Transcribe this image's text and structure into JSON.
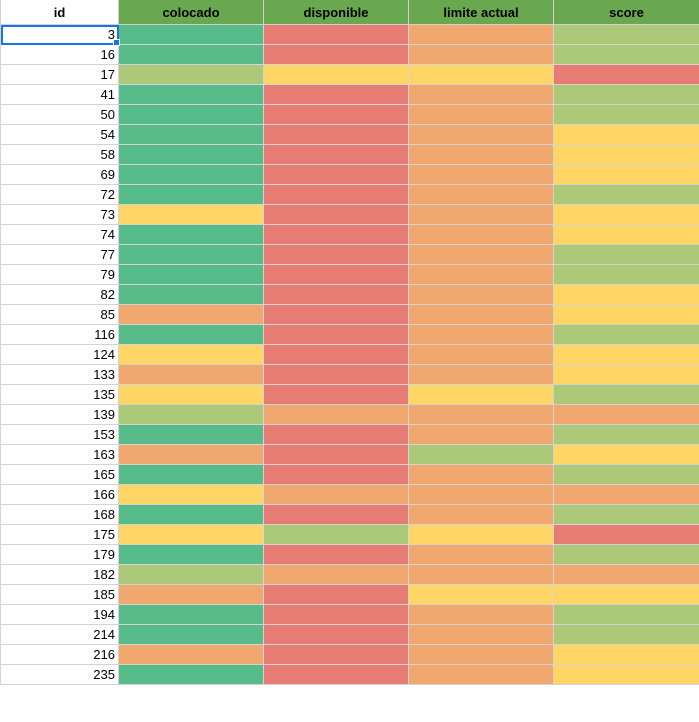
{
  "palette": {
    "green": "#57bb8a",
    "light_green": "#abc978",
    "yellow": "#ffd666",
    "orange": "#f0a86e",
    "red": "#e67c73",
    "header_green": "#6aa84f"
  },
  "headers": {
    "id": "id",
    "colocado": "colocado",
    "disponible": "disponible",
    "limite_actual": "limite actual",
    "score": "score"
  },
  "rows": [
    {
      "id": "3",
      "colors": [
        "green",
        "red",
        "orange",
        "light_green"
      ]
    },
    {
      "id": "16",
      "colors": [
        "green",
        "red",
        "orange",
        "light_green"
      ]
    },
    {
      "id": "17",
      "colors": [
        "light_green",
        "yellow",
        "yellow",
        "red"
      ]
    },
    {
      "id": "41",
      "colors": [
        "green",
        "red",
        "orange",
        "light_green"
      ]
    },
    {
      "id": "50",
      "colors": [
        "green",
        "red",
        "orange",
        "light_green"
      ]
    },
    {
      "id": "54",
      "colors": [
        "green",
        "red",
        "orange",
        "yellow"
      ]
    },
    {
      "id": "58",
      "colors": [
        "green",
        "red",
        "orange",
        "yellow"
      ]
    },
    {
      "id": "69",
      "colors": [
        "green",
        "red",
        "orange",
        "yellow"
      ]
    },
    {
      "id": "72",
      "colors": [
        "green",
        "red",
        "orange",
        "light_green"
      ]
    },
    {
      "id": "73",
      "colors": [
        "yellow",
        "red",
        "orange",
        "yellow"
      ]
    },
    {
      "id": "74",
      "colors": [
        "green",
        "red",
        "orange",
        "yellow"
      ]
    },
    {
      "id": "77",
      "colors": [
        "green",
        "red",
        "orange",
        "light_green"
      ]
    },
    {
      "id": "79",
      "colors": [
        "green",
        "red",
        "orange",
        "light_green"
      ]
    },
    {
      "id": "82",
      "colors": [
        "green",
        "red",
        "orange",
        "yellow"
      ]
    },
    {
      "id": "85",
      "colors": [
        "orange",
        "red",
        "orange",
        "yellow"
      ]
    },
    {
      "id": "116",
      "colors": [
        "green",
        "red",
        "orange",
        "light_green"
      ]
    },
    {
      "id": "124",
      "colors": [
        "yellow",
        "red",
        "orange",
        "yellow"
      ]
    },
    {
      "id": "133",
      "colors": [
        "orange",
        "red",
        "orange",
        "yellow"
      ]
    },
    {
      "id": "135",
      "colors": [
        "yellow",
        "red",
        "yellow",
        "light_green"
      ]
    },
    {
      "id": "139",
      "colors": [
        "light_green",
        "orange",
        "orange",
        "orange"
      ]
    },
    {
      "id": "153",
      "colors": [
        "green",
        "red",
        "orange",
        "light_green"
      ]
    },
    {
      "id": "163",
      "colors": [
        "orange",
        "red",
        "light_green",
        "yellow"
      ]
    },
    {
      "id": "165",
      "colors": [
        "green",
        "red",
        "orange",
        "light_green"
      ]
    },
    {
      "id": "166",
      "colors": [
        "yellow",
        "orange",
        "orange",
        "orange"
      ]
    },
    {
      "id": "168",
      "colors": [
        "green",
        "red",
        "orange",
        "light_green"
      ]
    },
    {
      "id": "175",
      "colors": [
        "yellow",
        "light_green",
        "yellow",
        "red"
      ]
    },
    {
      "id": "179",
      "colors": [
        "green",
        "red",
        "orange",
        "light_green"
      ]
    },
    {
      "id": "182",
      "colors": [
        "light_green",
        "orange",
        "orange",
        "orange"
      ]
    },
    {
      "id": "185",
      "colors": [
        "orange",
        "red",
        "yellow",
        "yellow"
      ]
    },
    {
      "id": "194",
      "colors": [
        "green",
        "red",
        "orange",
        "light_green"
      ]
    },
    {
      "id": "214",
      "colors": [
        "green",
        "red",
        "orange",
        "light_green"
      ]
    },
    {
      "id": "216",
      "colors": [
        "orange",
        "red",
        "orange",
        "yellow"
      ]
    },
    {
      "id": "235",
      "colors": [
        "green",
        "red",
        "orange",
        "yellow"
      ]
    }
  ]
}
